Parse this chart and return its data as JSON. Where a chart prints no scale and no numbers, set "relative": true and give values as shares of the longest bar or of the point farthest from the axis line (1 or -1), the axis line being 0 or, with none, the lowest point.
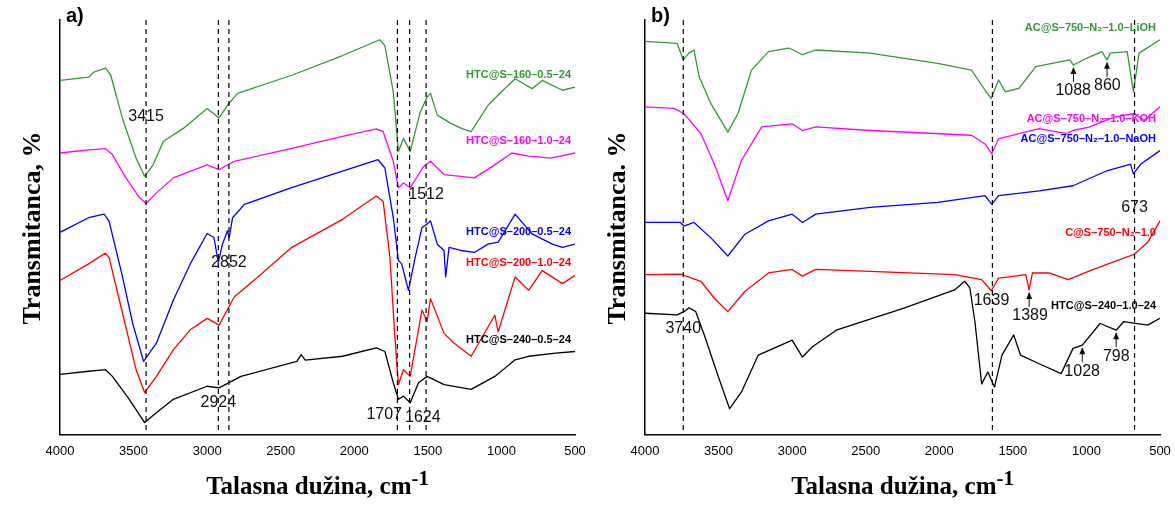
{
  "chart_data": [
    {
      "type": "line",
      "title": "a)",
      "xlabel": "Talasna dužina, cm$^{-1}$",
      "ylabel": "Transmitanca, %",
      "relative": true,
      "xlim": [
        4000,
        500
      ],
      "xticks": [
        4000,
        3500,
        3000,
        2500,
        2000,
        1500,
        1000,
        500
      ],
      "series": [
        {
          "name": "HTC@S–160–0.5–24",
          "color": "#339933",
          "x": [
            4000,
            3805,
            3770,
            3690,
            3655,
            3575,
            3483,
            3425,
            3367,
            3298,
            3160,
            3000,
            2919,
            2862,
            2793,
            2425,
            2080,
            1827,
            1792,
            1735,
            1700,
            1666,
            1620,
            1551,
            1505,
            1482,
            1436,
            1344,
            1276,
            1206,
            1091,
            1000,
            907,
            792,
            723,
            585,
            500
          ],
          "values": [
            0.897,
            0.905,
            0.918,
            0.928,
            0.91,
            0.8,
            0.7,
            0.654,
            0.683,
            0.742,
            0.776,
            0.826,
            0.802,
            0.834,
            0.864,
            0.91,
            0.96,
            1,
            0.985,
            0.868,
            0.717,
            0.75,
            0.717,
            0.817,
            0.855,
            0.864,
            0.809,
            0.788,
            0.776,
            0.767,
            0.834,
            0.868,
            0.901,
            0.876,
            0.897,
            0.872,
            0.88
          ]
        },
        {
          "name": "HTC@S–160–1.0–24",
          "color": "#ff00ff",
          "x": [
            4000,
            3805,
            3690,
            3644,
            3552,
            3460,
            3414,
            3345,
            3230,
            3000,
            2919,
            2816,
            2425,
            2080,
            1850,
            1804,
            1735,
            1700,
            1666,
            1620,
            1528,
            1482,
            1390,
            1276,
            1184,
            1045,
            930,
            815,
            665,
            500
          ],
          "values": [
            0.713,
            0.721,
            0.724,
            0.709,
            0.65,
            0.6,
            0.585,
            0.612,
            0.65,
            0.683,
            0.671,
            0.692,
            0.725,
            0.755,
            0.774,
            0.767,
            0.692,
            0.625,
            0.637,
            0.625,
            0.679,
            0.692,
            0.658,
            0.654,
            0.65,
            0.683,
            0.713,
            0.705,
            0.7,
            0.713
          ]
        },
        {
          "name": "HTC@S–200–0.5–24",
          "color": "#0000ff",
          "x": [
            4000,
            3805,
            3701,
            3667,
            3575,
            3506,
            3432,
            3345,
            3230,
            3115,
            3000,
            2954,
            2924,
            2896,
            2862,
            2850,
            2827,
            2747,
            2425,
            2080,
            1839,
            1792,
            1735,
            1700,
            1678,
            1632,
            1586,
            1540,
            1505,
            1482,
            1436,
            1390,
            1379,
            1356,
            1276,
            1184,
            1091,
            1022,
            907,
            792,
            654,
            585,
            500
          ],
          "values": [
            0.512,
            0.549,
            0.558,
            0.541,
            0.399,
            0.281,
            0.185,
            0.231,
            0.34,
            0.432,
            0.509,
            0.499,
            0.436,
            0.482,
            0.516,
            0.499,
            0.549,
            0.583,
            0.625,
            0.667,
            0.696,
            0.675,
            0.549,
            0.441,
            0.432,
            0.365,
            0.449,
            0.524,
            0.533,
            0.541,
            0.482,
            0.466,
            0.399,
            0.474,
            0.466,
            0.461,
            0.482,
            0.487,
            0.558,
            0.508,
            0.482,
            0.474,
            0.482
          ]
        },
        {
          "name": "HTC@S–200–1.0–24",
          "color": "#ff0000",
          "x": [
            4000,
            3805,
            3694,
            3667,
            3575,
            3483,
            3425,
            3345,
            3230,
            3115,
            3000,
            2919,
            2816,
            2655,
            2425,
            2080,
            1850,
            1804,
            1758,
            1723,
            1700,
            1666,
            1620,
            1540,
            1505,
            1482,
            1390,
            1321,
            1206,
            1045,
            1022,
            907,
            815,
            723,
            585,
            500
          ],
          "values": [
            0.39,
            0.432,
            0.459,
            0.449,
            0.307,
            0.164,
            0.106,
            0.147,
            0.214,
            0.265,
            0.294,
            0.277,
            0.348,
            0.399,
            0.474,
            0.545,
            0.604,
            0.591,
            0.449,
            0.24,
            0.126,
            0.164,
            0.147,
            0.315,
            0.286,
            0.344,
            0.256,
            0.231,
            0.198,
            0.302,
            0.26,
            0.399,
            0.365,
            0.415,
            0.382,
            0.403
          ]
        },
        {
          "name": "HTC@S–240–0.5–24",
          "color": "#000000",
          "x": [
            4000,
            3805,
            3690,
            3644,
            3529,
            3425,
            3345,
            3230,
            3000,
            2919,
            2770,
            2390,
            2361,
            2333,
            2080,
            1850,
            1792,
            1735,
            1700,
            1666,
            1620,
            1563,
            1505,
            1390,
            1206,
            1045,
            907,
            815,
            631,
            500
          ],
          "values": [
            0.152,
            0.16,
            0.164,
            0.147,
            0.089,
            0.03,
            0.055,
            0.089,
            0.122,
            0.118,
            0.147,
            0.185,
            0.202,
            0.188,
            0.198,
            0.219,
            0.21,
            0.131,
            0.089,
            0.097,
            0.08,
            0.131,
            0.147,
            0.126,
            0.114,
            0.147,
            0.189,
            0.198,
            0.206,
            0.21
          ]
        }
      ],
      "ref_lines": [
        {
          "axis": "x",
          "value": 3415,
          "line_style": "dashed",
          "color": "#000000"
        },
        {
          "axis": "x",
          "value": 2924,
          "line_style": "dashed",
          "color": "#000000"
        },
        {
          "axis": "x",
          "value": 2852,
          "line_style": "dashed",
          "color": "#000000"
        },
        {
          "axis": "x",
          "value": 1707,
          "line_style": "dashed",
          "color": "#000000"
        },
        {
          "axis": "x",
          "value": 1624,
          "line_style": "dashed",
          "color": "#000000"
        },
        {
          "axis": "x",
          "value": 1512,
          "line_style": "dashed",
          "color": "#000000"
        }
      ],
      "annotations": [
        {
          "text": "3415",
          "x": 3415,
          "y": 0.805
        },
        {
          "text": "2852",
          "x": 2852,
          "y": 0.436
        },
        {
          "text": "2924",
          "x": 2924,
          "y": 0.08
        },
        {
          "text": "1707",
          "x": 1707,
          "y": 0.051
        },
        {
          "text": "1624",
          "x": 1624,
          "y": 0.043
        },
        {
          "text": "1512",
          "x": 1512,
          "y": 0.608
        }
      ]
    },
    {
      "type": "line",
      "title": "b)",
      "xlabel": "Talasna dužina, cm$^{-1}$",
      "ylabel": "Transmitanca. %",
      "relative": true,
      "xlim": [
        4000,
        500
      ],
      "xticks": [
        4000,
        3500,
        3000,
        2500,
        2000,
        1500,
        1000,
        500
      ],
      "series": [
        {
          "name": "AC@S–750–N₂–1.0–LiOH",
          "color": "#339933",
          "x": [
            4000,
            3782,
            3740,
            3701,
            3667,
            3632,
            3552,
            3437,
            3368,
            3276,
            3161,
            3023,
            2930,
            2839,
            2470,
            2011,
            1781,
            1689,
            1647,
            1597,
            1551,
            1459,
            1344,
            1114,
            1088,
            999,
            895,
            860,
            838,
            723,
            681,
            642,
            500
          ],
          "values": [
            0.996,
            0.991,
            0.949,
            0.966,
            0.974,
            0.906,
            0.838,
            0.766,
            0.813,
            0.923,
            0.97,
            0.979,
            0.962,
            0.974,
            0.966,
            0.94,
            0.923,
            0.872,
            0.851,
            0.898,
            0.868,
            0.877,
            0.932,
            0.949,
            0.936,
            0.953,
            0.97,
            0.949,
            0.966,
            0.97,
            0.868,
            0.966,
            1
          ]
        },
        {
          "name": "AC@S–750–N₂–1.0–KOH",
          "color": "#ff00ff",
          "x": [
            4000,
            3805,
            3736,
            3620,
            3529,
            3437,
            3345,
            3207,
            3000,
            2930,
            2839,
            2470,
            1781,
            1689,
            1643,
            1597,
            1321,
            1137,
            1091,
            976,
            815,
            677,
            608,
            500
          ],
          "values": [
            0.83,
            0.826,
            0.813,
            0.762,
            0.685,
            0.592,
            0.694,
            0.779,
            0.787,
            0.77,
            0.779,
            0.77,
            0.758,
            0.736,
            0.711,
            0.749,
            0.775,
            0.762,
            0.77,
            0.779,
            0.804,
            0.813,
            0.796,
            0.83
          ]
        },
        {
          "name": "AC@S–750–N₂–1.0–NaOH",
          "color": "#0000ff",
          "x": [
            4000,
            3759,
            3736,
            3667,
            3552,
            3437,
            3322,
            3161,
            3000,
            2930,
            2839,
            2470,
            2011,
            1689,
            1643,
            1597,
            1321,
            1091,
            861,
            700,
            681,
            630,
            500
          ],
          "values": [
            0.537,
            0.537,
            0.528,
            0.537,
            0.498,
            0.452,
            0.507,
            0.541,
            0.558,
            0.537,
            0.558,
            0.575,
            0.588,
            0.605,
            0.583,
            0.605,
            0.617,
            0.63,
            0.668,
            0.685,
            0.66,
            0.685,
            0.719
          ]
        },
        {
          "name": "C@S–750–N₂–1.0",
          "color": "#ff0000",
          "x": [
            4000,
            3759,
            3620,
            3529,
            3437,
            3322,
            3161,
            3000,
            2930,
            2839,
            2470,
            1896,
            1712,
            1647,
            1597,
            1413,
            1389,
            1367,
            1252,
            1125,
            953,
            677,
            585,
            500
          ],
          "values": [
            0.405,
            0.406,
            0.388,
            0.345,
            0.311,
            0.362,
            0.409,
            0.418,
            0.401,
            0.418,
            0.413,
            0.405,
            0.392,
            0.364,
            0.396,
            0.405,
            0.366,
            0.409,
            0.409,
            0.392,
            0.418,
            0.456,
            0.486,
            0.541
          ]
        },
        {
          "name": "HTC@S–240–1.0–24",
          "color": "#000000",
          "x": [
            4000,
            3782,
            3736,
            3701,
            3655,
            3597,
            3505,
            3425,
            3345,
            3230,
            3000,
            2930,
            2862,
            2700,
            2240,
            1896,
            1827,
            1792,
            1758,
            1712,
            1670,
            1625,
            1574,
            1494,
            1448,
            1321,
            1172,
            1091,
            1028,
            907,
            798,
            746,
            585,
            500
          ],
          "values": [
            0.307,
            0.303,
            0.311,
            0.321,
            0.311,
            0.252,
            0.15,
            0.065,
            0.107,
            0.201,
            0.239,
            0.196,
            0.222,
            0.264,
            0.32,
            0.366,
            0.388,
            0.371,
            0.286,
            0.128,
            0.158,
            0.12,
            0.201,
            0.252,
            0.201,
            0.179,
            0.154,
            0.218,
            0.226,
            0.281,
            0.264,
            0.286,
            0.277,
            0.294
          ]
        }
      ],
      "ref_lines": [
        {
          "axis": "x",
          "value": 3740,
          "line_style": "dashed",
          "color": "#000000"
        },
        {
          "axis": "x",
          "value": 1639,
          "line_style": "dashed",
          "color": "#000000"
        },
        {
          "axis": "x",
          "value": 673,
          "line_style": "dashed",
          "color": "#000000"
        }
      ],
      "annotations": [
        {
          "text": "1088",
          "x": 1088,
          "y": 0.936
        },
        {
          "text": "860",
          "x": 860,
          "y": 0.949
        },
        {
          "text": "673",
          "x": 673,
          "y": 0.575
        },
        {
          "text": "1639",
          "x": 1639,
          "y": 0.338
        },
        {
          "text": "1389",
          "x": 1389,
          "y": 0.366
        },
        {
          "text": "3740",
          "x": 3740,
          "y": 0.269
        },
        {
          "text": "1028",
          "x": 1028,
          "y": 0.226
        },
        {
          "text": "798",
          "x": 798,
          "y": 0.264
        }
      ]
    }
  ]
}
